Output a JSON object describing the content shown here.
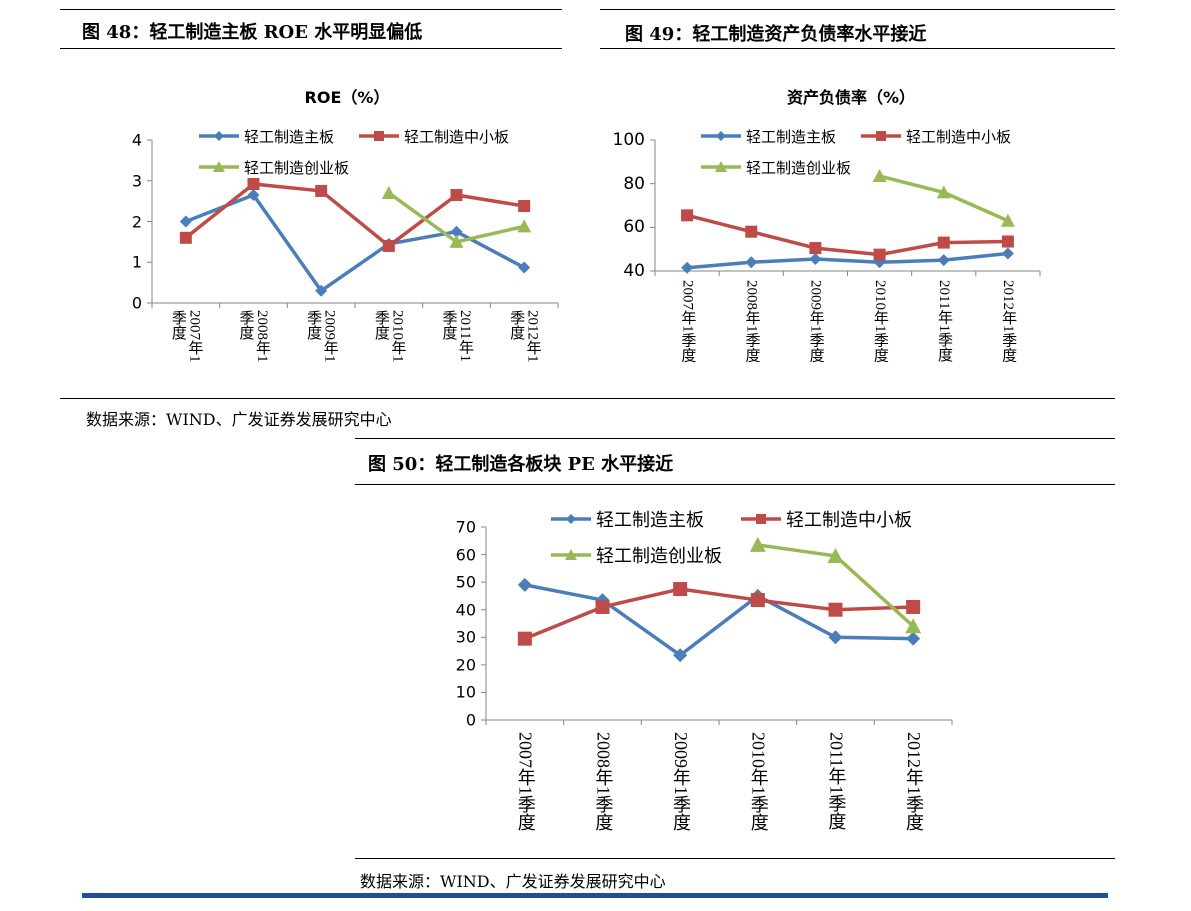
{
  "figures": {
    "fig48": {
      "title": "图 48：轻工制造主板 ROE 水平明显偏低"
    },
    "fig49": {
      "title": "图 49：轻工制造资产负债率水平接近"
    },
    "fig50": {
      "title": "图 50：轻工制造各板块 PE 水平接近"
    }
  },
  "sources": {
    "top": "数据来源：WIND、广发证券发展研究中心",
    "bottom": "数据来源：WIND、广发证券发展研究中心"
  },
  "colors": {
    "main": "#4a7ebb",
    "sme": "#be4b48",
    "gem": "#98b954",
    "footer_bar": "#1f4e9c"
  },
  "chart_data": [
    {
      "type": "line",
      "title": "ROE（%）",
      "categories": [
        "2007年1季度",
        "2008年1季度",
        "2009年1季度",
        "2010年1季度",
        "2011年1季度",
        "2012年1季度"
      ],
      "ylim": [
        0,
        4
      ],
      "yticks": [
        0,
        1,
        2,
        3,
        4
      ],
      "legend": "top",
      "series": [
        {
          "name": "轻工制造主板",
          "marker": "diamond",
          "color": "#4a7ebb",
          "values": [
            2.0,
            2.65,
            0.3,
            1.45,
            1.75,
            0.87
          ]
        },
        {
          "name": "轻工制造中小板",
          "marker": "square",
          "color": "#be4b48",
          "values": [
            1.6,
            2.92,
            2.75,
            1.4,
            2.65,
            2.38
          ]
        },
        {
          "name": "轻工制造创业板",
          "marker": "triangle",
          "color": "#98b954",
          "values": [
            null,
            null,
            null,
            2.7,
            1.5,
            1.88
          ]
        }
      ]
    },
    {
      "type": "line",
      "title": "资产负债率（%）",
      "categories": [
        "2007年1季度",
        "2008年1季度",
        "2009年1季度",
        "2010年1季度",
        "2011年1季度",
        "2012年1季度"
      ],
      "ylim": [
        40,
        100
      ],
      "yticks": [
        40,
        60,
        80,
        100
      ],
      "legend": "top",
      "series": [
        {
          "name": "轻工制造主板",
          "marker": "diamond",
          "color": "#4a7ebb",
          "values": [
            41.5,
            44,
            45.5,
            44,
            45,
            48
          ]
        },
        {
          "name": "轻工制造中小板",
          "marker": "square",
          "color": "#be4b48",
          "values": [
            65.5,
            58,
            50.5,
            47.5,
            53,
            53.5
          ]
        },
        {
          "name": "轻工制造创业板",
          "marker": "triangle",
          "color": "#98b954",
          "values": [
            null,
            null,
            null,
            83.5,
            76,
            63
          ]
        }
      ]
    },
    {
      "type": "line",
      "title": "",
      "categories": [
        "2007年1季度",
        "2008年1季度",
        "2009年1季度",
        "2010年1季度",
        "2011年1季度",
        "2012年1季度"
      ],
      "ylim": [
        0,
        70
      ],
      "yticks": [
        0,
        10,
        20,
        30,
        40,
        50,
        60,
        70
      ],
      "legend": "top",
      "series": [
        {
          "name": "轻工制造主板",
          "marker": "diamond",
          "color": "#4a7ebb",
          "values": [
            49,
            43.5,
            23.5,
            45,
            30,
            29.5
          ]
        },
        {
          "name": "轻工制造中小板",
          "marker": "square",
          "color": "#be4b48",
          "values": [
            29.5,
            41,
            47.5,
            43.5,
            40,
            41
          ]
        },
        {
          "name": "轻工制造创业板",
          "marker": "triangle",
          "color": "#98b954",
          "values": [
            null,
            null,
            null,
            63.5,
            59.5,
            34
          ]
        }
      ]
    }
  ]
}
